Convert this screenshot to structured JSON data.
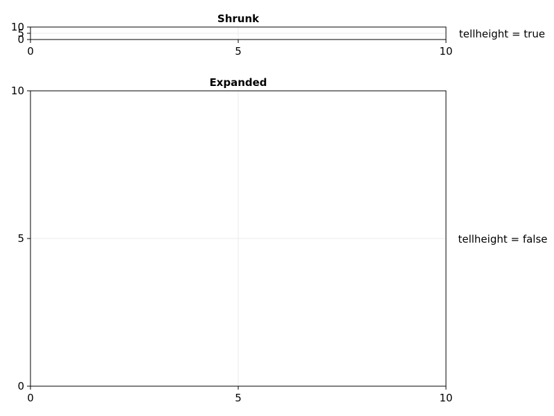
{
  "chart_data": [
    {
      "type": "scatter",
      "title": "Shrunk",
      "side_label": "tellheight = true",
      "xlim": [
        0,
        10
      ],
      "ylim": [
        0,
        10
      ],
      "x_ticks": [
        "0",
        "5",
        "10"
      ],
      "y_ticks": [
        "0",
        "5",
        "10"
      ],
      "x_tick_values": [
        0,
        5,
        10
      ],
      "y_tick_values": [
        0,
        5,
        10
      ],
      "grid": true,
      "series": []
    },
    {
      "type": "scatter",
      "title": "Expanded",
      "side_label": "tellheight = false",
      "xlim": [
        0,
        10
      ],
      "ylim": [
        0,
        10
      ],
      "x_ticks": [
        "0",
        "5",
        "10"
      ],
      "y_ticks": [
        "0",
        "5",
        "10"
      ],
      "x_tick_values": [
        0,
        5,
        10
      ],
      "y_tick_values": [
        0,
        5,
        10
      ],
      "grid": true,
      "series": []
    }
  ]
}
